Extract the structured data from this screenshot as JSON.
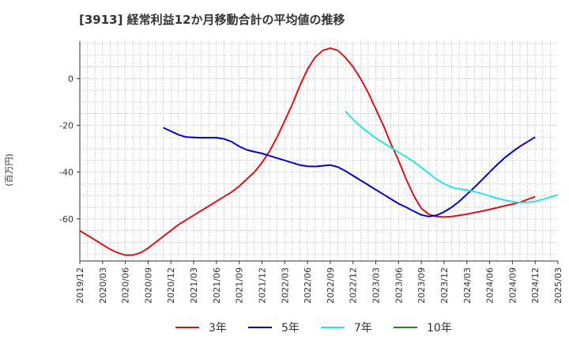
{
  "title": "[3913]  経常利益12か月移動合計の平均値の推移",
  "y_unit_label": "(百万円)",
  "colors": {
    "3y": "#dd1111",
    "5y": "#0000cc",
    "7y": "#22e6e6",
    "10y": "#228822",
    "grid": "#999999",
    "axis": "#333333"
  },
  "chart_data": {
    "type": "line",
    "title": "[3913]  経常利益12か月移動合計の平均値の推移",
    "ylabel": "(百万円)",
    "xlabel": "",
    "x_ticks": [
      "2019/12",
      "2020/03",
      "2020/06",
      "2020/09",
      "2020/12",
      "2021/03",
      "2021/06",
      "2021/09",
      "2021/12",
      "2022/03",
      "2022/06",
      "2022/09",
      "2022/12",
      "2023/03",
      "2023/06",
      "2023/09",
      "2023/12",
      "2024/03",
      "2024/06",
      "2024/09",
      "2024/12",
      "2025/03"
    ],
    "y_ticks": [
      0,
      -20,
      -40,
      -60
    ],
    "ylim": [
      -78,
      16
    ],
    "xlim": [
      "2019/12",
      "2025/03"
    ],
    "grid": true,
    "legend_position": "bottom",
    "series": [
      {
        "name": "3年",
        "color_key": "3y",
        "points": [
          [
            "2019/12",
            -65
          ],
          [
            "2020/01",
            -67
          ],
          [
            "2020/02",
            -69
          ],
          [
            "2020/03",
            -71
          ],
          [
            "2020/04",
            -73
          ],
          [
            "2020/05",
            -74.5
          ],
          [
            "2020/06",
            -75.5
          ],
          [
            "2020/07",
            -75.5
          ],
          [
            "2020/08",
            -74.5
          ],
          [
            "2020/09",
            -72.5
          ],
          [
            "2020/10",
            -70
          ],
          [
            "2020/11",
            -67.5
          ],
          [
            "2020/12",
            -65
          ],
          [
            "2021/01",
            -62.5
          ],
          [
            "2021/02",
            -60.5
          ],
          [
            "2021/03",
            -58.5
          ],
          [
            "2021/04",
            -56.5
          ],
          [
            "2021/05",
            -54.5
          ],
          [
            "2021/06",
            -52.5
          ],
          [
            "2021/07",
            -50.5
          ],
          [
            "2021/08",
            -48.5
          ],
          [
            "2021/09",
            -46
          ],
          [
            "2021/10",
            -43
          ],
          [
            "2021/11",
            -40
          ],
          [
            "2021/12",
            -36
          ],
          [
            "2022/01",
            -31
          ],
          [
            "2022/02",
            -25
          ],
          [
            "2022/03",
            -18
          ],
          [
            "2022/04",
            -11
          ],
          [
            "2022/05",
            -3
          ],
          [
            "2022/06",
            4
          ],
          [
            "2022/07",
            9
          ],
          [
            "2022/08",
            12
          ],
          [
            "2022/09",
            13
          ],
          [
            "2022/10",
            12
          ],
          [
            "2022/11",
            9
          ],
          [
            "2022/12",
            5
          ],
          [
            "2023/01",
            0
          ],
          [
            "2023/02",
            -6
          ],
          [
            "2023/03",
            -13
          ],
          [
            "2023/04",
            -20
          ],
          [
            "2023/05",
            -28
          ],
          [
            "2023/06",
            -35
          ],
          [
            "2023/07",
            -43
          ],
          [
            "2023/08",
            -50
          ],
          [
            "2023/09",
            -55.5
          ],
          [
            "2023/10",
            -58
          ],
          [
            "2023/11",
            -59
          ],
          [
            "2023/12",
            -59.2
          ],
          [
            "2024/01",
            -59
          ],
          [
            "2024/02",
            -58.5
          ],
          [
            "2024/03",
            -58
          ],
          [
            "2024/04",
            -57.3
          ],
          [
            "2024/05",
            -56.7
          ],
          [
            "2024/06",
            -56
          ],
          [
            "2024/07",
            -55.2
          ],
          [
            "2024/08",
            -54.4
          ],
          [
            "2024/09",
            -53.7
          ],
          [
            "2024/10",
            -52.9
          ],
          [
            "2024/11",
            -51.7
          ],
          [
            "2024/12",
            -50.5
          ]
        ]
      },
      {
        "name": "5年",
        "color_key": "5y",
        "points": [
          [
            "2020/11",
            -21
          ],
          [
            "2020/12",
            -22.5
          ],
          [
            "2021/01",
            -24
          ],
          [
            "2021/02",
            -25
          ],
          [
            "2021/03",
            -25.2
          ],
          [
            "2021/04",
            -25.3
          ],
          [
            "2021/05",
            -25.3
          ],
          [
            "2021/06",
            -25.3
          ],
          [
            "2021/07",
            -25.8
          ],
          [
            "2021/08",
            -27
          ],
          [
            "2021/09",
            -29
          ],
          [
            "2021/10",
            -30.5
          ],
          [
            "2021/11",
            -31.3
          ],
          [
            "2021/12",
            -32
          ],
          [
            "2022/01",
            -33
          ],
          [
            "2022/02",
            -34
          ],
          [
            "2022/03",
            -35
          ],
          [
            "2022/04",
            -36
          ],
          [
            "2022/05",
            -37
          ],
          [
            "2022/06",
            -37.5
          ],
          [
            "2022/07",
            -37.6
          ],
          [
            "2022/08",
            -37.3
          ],
          [
            "2022/09",
            -37
          ],
          [
            "2022/10",
            -37.8
          ],
          [
            "2022/11",
            -39.5
          ],
          [
            "2022/12",
            -41.5
          ],
          [
            "2023/01",
            -43.5
          ],
          [
            "2023/02",
            -45.5
          ],
          [
            "2023/03",
            -47.5
          ],
          [
            "2023/04",
            -49.5
          ],
          [
            "2023/05",
            -51.5
          ],
          [
            "2023/06",
            -53.5
          ],
          [
            "2023/07",
            -55
          ],
          [
            "2023/08",
            -56.7
          ],
          [
            "2023/09",
            -58.3
          ],
          [
            "2023/10",
            -59
          ],
          [
            "2023/11",
            -58.5
          ],
          [
            "2023/12",
            -57
          ],
          [
            "2024/01",
            -55
          ],
          [
            "2024/02",
            -52.5
          ],
          [
            "2024/03",
            -49.5
          ],
          [
            "2024/04",
            -46.5
          ],
          [
            "2024/05",
            -43.3
          ],
          [
            "2024/06",
            -40
          ],
          [
            "2024/07",
            -36.8
          ],
          [
            "2024/08",
            -33.8
          ],
          [
            "2024/09",
            -31.3
          ],
          [
            "2024/10",
            -29
          ],
          [
            "2024/11",
            -27
          ],
          [
            "2024/12",
            -25
          ]
        ]
      },
      {
        "name": "7年",
        "color_key": "7y",
        "points": [
          [
            "2022/11",
            -14
          ],
          [
            "2022/12",
            -17.5
          ],
          [
            "2023/01",
            -20.5
          ],
          [
            "2023/02",
            -23
          ],
          [
            "2023/03",
            -25.5
          ],
          [
            "2023/04",
            -27.5
          ],
          [
            "2023/05",
            -29.5
          ],
          [
            "2023/06",
            -31.5
          ],
          [
            "2023/07",
            -33.5
          ],
          [
            "2023/08",
            -35.5
          ],
          [
            "2023/09",
            -38
          ],
          [
            "2023/10",
            -40.5
          ],
          [
            "2023/11",
            -43
          ],
          [
            "2023/12",
            -45
          ],
          [
            "2024/01",
            -46.5
          ],
          [
            "2024/02",
            -47.2
          ],
          [
            "2024/03",
            -47.7
          ],
          [
            "2024/04",
            -48.3
          ],
          [
            "2024/05",
            -49.2
          ],
          [
            "2024/06",
            -50.2
          ],
          [
            "2024/07",
            -51.2
          ],
          [
            "2024/08",
            -52
          ],
          [
            "2024/09",
            -52.6
          ],
          [
            "2024/10",
            -53
          ],
          [
            "2024/11",
            -52.9
          ],
          [
            "2024/12",
            -52.5
          ],
          [
            "2025/01",
            -51.7
          ],
          [
            "2025/02",
            -50.7
          ],
          [
            "2025/03",
            -49.7
          ]
        ]
      },
      {
        "name": "10年",
        "color_key": "10y",
        "points": []
      }
    ]
  }
}
